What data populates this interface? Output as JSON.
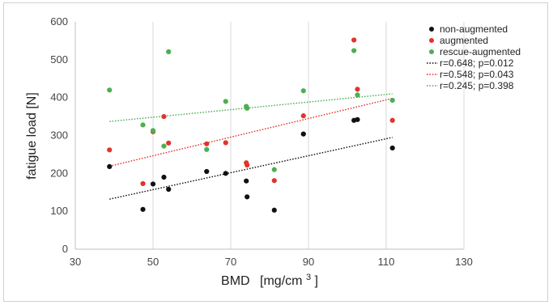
{
  "chart_data": {
    "type": "scatter",
    "title": "",
    "xlabel": "BMD",
    "xlabel_unit_prefix": "[mg/cm",
    "xlabel_unit_sup": "3",
    "xlabel_unit_suffix": "]",
    "ylabel": "fatigue load [N]",
    "xlim": [
      30,
      130
    ],
    "ylim": [
      0,
      600
    ],
    "xticks": [
      "30",
      "50",
      "70",
      "90",
      "110",
      "130"
    ],
    "yticks": [
      "0",
      "100",
      "200",
      "300",
      "400",
      "500",
      "600"
    ],
    "grid": "vertical",
    "legend_position": "top-right",
    "series": [
      {
        "name": "non-augmented",
        "color": "#111111",
        "points": [
          {
            "x": 38.8,
            "y": 218
          },
          {
            "x": 47.4,
            "y": 105
          },
          {
            "x": 50.0,
            "y": 172
          },
          {
            "x": 52.8,
            "y": 190
          },
          {
            "x": 54.0,
            "y": 158
          },
          {
            "x": 63.8,
            "y": 205
          },
          {
            "x": 68.7,
            "y": 200
          },
          {
            "x": 74.0,
            "y": 180
          },
          {
            "x": 74.2,
            "y": 138
          },
          {
            "x": 81.2,
            "y": 103
          },
          {
            "x": 88.7,
            "y": 304
          },
          {
            "x": 101.7,
            "y": 340
          },
          {
            "x": 102.6,
            "y": 342
          },
          {
            "x": 111.6,
            "y": 267
          }
        ]
      },
      {
        "name": "augmented",
        "color": "#e2332b",
        "points": [
          {
            "x": 38.8,
            "y": 262
          },
          {
            "x": 47.4,
            "y": 173
          },
          {
            "x": 50.0,
            "y": 310
          },
          {
            "x": 52.8,
            "y": 350
          },
          {
            "x": 54.0,
            "y": 280
          },
          {
            "x": 63.8,
            "y": 278
          },
          {
            "x": 68.7,
            "y": 281
          },
          {
            "x": 74.0,
            "y": 228
          },
          {
            "x": 74.2,
            "y": 222
          },
          {
            "x": 81.2,
            "y": 181
          },
          {
            "x": 88.7,
            "y": 352
          },
          {
            "x": 101.7,
            "y": 552
          },
          {
            "x": 102.6,
            "y": 422
          },
          {
            "x": 111.6,
            "y": 340
          }
        ]
      },
      {
        "name": "rescue-augmented",
        "color": "#4caf50",
        "points": [
          {
            "x": 38.8,
            "y": 420
          },
          {
            "x": 47.4,
            "y": 328
          },
          {
            "x": 50.0,
            "y": 313
          },
          {
            "x": 52.8,
            "y": 272
          },
          {
            "x": 54.0,
            "y": 521
          },
          {
            "x": 63.8,
            "y": 263
          },
          {
            "x": 68.7,
            "y": 390
          },
          {
            "x": 74.0,
            "y": 377
          },
          {
            "x": 74.2,
            "y": 372
          },
          {
            "x": 81.2,
            "y": 210
          },
          {
            "x": 88.7,
            "y": 418
          },
          {
            "x": 101.7,
            "y": 524
          },
          {
            "x": 102.6,
            "y": 407
          },
          {
            "x": 111.6,
            "y": 393
          }
        ]
      }
    ],
    "trendlines": [
      {
        "label": "r=0.648; p=0.012",
        "color": "#111111",
        "x": [
          38.8,
          111.6
        ],
        "y": [
          132,
          295
        ]
      },
      {
        "label": "r=0.548; p=0.043",
        "color": "#e2332b",
        "x": [
          38.8,
          111.6
        ],
        "y": [
          219,
          398
        ]
      },
      {
        "label": "r=0.245; p=0.398",
        "color": "#4caf50",
        "x": [
          38.8,
          111.6
        ],
        "y": [
          337,
          410
        ]
      }
    ]
  }
}
